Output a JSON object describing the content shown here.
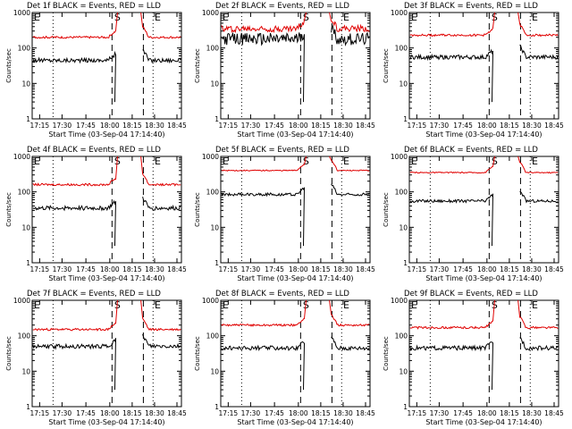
{
  "colors": {
    "events": "#000000",
    "lld": "#e00000",
    "axes": "#000000",
    "background": "#ffffff"
  },
  "common": {
    "xlabel": "Start Time (03-Sep-04 17:14:40)",
    "ylabel": "Counts/sec",
    "x_ticks": [
      "17:15",
      "17:30",
      "17:45",
      "18:00",
      "18:15",
      "18:30",
      "18:45"
    ],
    "y_ticks": [
      "1",
      "10",
      "100",
      "1000"
    ],
    "region_labels": [
      "E",
      "S",
      "E"
    ]
  },
  "chart_data": [
    {
      "type": "line",
      "title": "Det 1f BLACK = Events, RED = LLD",
      "yscale": "log",
      "ylim": [
        1,
        1000
      ],
      "series": [
        {
          "name": "Events",
          "level": 45,
          "noise": 0.12
        },
        {
          "name": "LLD",
          "level": 200,
          "noise": 0.06
        }
      ]
    },
    {
      "type": "line",
      "title": "Det 2f BLACK = Events, RED = LLD",
      "yscale": "log",
      "ylim": [
        1,
        1000
      ],
      "series": [
        {
          "name": "Events",
          "level": 180,
          "noise": 0.35
        },
        {
          "name": "LLD",
          "level": 350,
          "noise": 0.18
        }
      ]
    },
    {
      "type": "line",
      "title": "Det 3f BLACK = Events, RED = LLD",
      "yscale": "log",
      "ylim": [
        1,
        1000
      ],
      "series": [
        {
          "name": "Events",
          "level": 55,
          "noise": 0.12
        },
        {
          "name": "LLD",
          "level": 230,
          "noise": 0.06
        }
      ]
    },
    {
      "type": "line",
      "title": "Det 4f BLACK = Events, RED = LLD",
      "yscale": "log",
      "ylim": [
        1,
        1000
      ],
      "series": [
        {
          "name": "Events",
          "level": 35,
          "noise": 0.12
        },
        {
          "name": "LLD",
          "level": 160,
          "noise": 0.06
        }
      ]
    },
    {
      "type": "line",
      "title": "Det 5f BLACK = Events, RED = LLD",
      "yscale": "log",
      "ylim": [
        1,
        1000
      ],
      "series": [
        {
          "name": "Events",
          "level": 85,
          "noise": 0.08
        },
        {
          "name": "LLD",
          "level": 400,
          "noise": 0.03
        }
      ]
    },
    {
      "type": "line",
      "title": "Det 6f BLACK = Events, RED = LLD",
      "yscale": "log",
      "ylim": [
        1,
        1000
      ],
      "series": [
        {
          "name": "Events",
          "level": 55,
          "noise": 0.08
        },
        {
          "name": "LLD",
          "level": 350,
          "noise": 0.03
        }
      ]
    },
    {
      "type": "line",
      "title": "Det 7f BLACK = Events, RED = LLD",
      "yscale": "log",
      "ylim": [
        1,
        1000
      ],
      "series": [
        {
          "name": "Events",
          "level": 50,
          "noise": 0.12
        },
        {
          "name": "LLD",
          "level": 150,
          "noise": 0.06
        }
      ]
    },
    {
      "type": "line",
      "title": "Det 8f BLACK = Events, RED = LLD",
      "yscale": "log",
      "ylim": [
        1,
        1000
      ],
      "series": [
        {
          "name": "Events",
          "level": 45,
          "noise": 0.12
        },
        {
          "name": "LLD",
          "level": 200,
          "noise": 0.06
        }
      ]
    },
    {
      "type": "line",
      "title": "Det 9f BLACK = Events, RED = LLD",
      "yscale": "log",
      "ylim": [
        1,
        1000
      ],
      "series": [
        {
          "name": "Events",
          "level": 45,
          "noise": 0.12
        },
        {
          "name": "LLD",
          "level": 170,
          "noise": 0.06
        }
      ]
    }
  ]
}
